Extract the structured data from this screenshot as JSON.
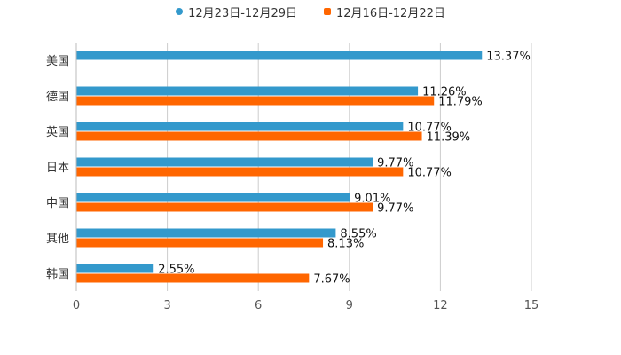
{
  "chart_data": {
    "type": "bar",
    "orientation": "horizontal",
    "title": "",
    "xlabel": "",
    "ylabel": "",
    "xlim": [
      0,
      15
    ],
    "x_ticks": [
      "0",
      "3",
      "6",
      "9",
      "12",
      "15"
    ],
    "grid": true,
    "legend_position": "top-center",
    "categories": [
      "美国",
      "德国",
      "英国",
      "日本",
      "中国",
      "其他",
      "韩国"
    ],
    "series": [
      {
        "name": "12月23日-12月29日",
        "color": "#3399cc",
        "marker": "dot",
        "values": [
          13.37,
          11.26,
          10.77,
          9.77,
          9.01,
          8.55,
          2.55
        ],
        "labels": [
          "13.37%",
          "11.26%",
          "10.77%",
          "9.77%",
          "9.01%",
          "8.55%",
          "2.55%"
        ]
      },
      {
        "name": "12月16日-12月22日",
        "color": "#ff6600",
        "marker": "square",
        "values": [
          null,
          11.79,
          11.39,
          10.77,
          9.77,
          8.13,
          7.67
        ],
        "labels": [
          "",
          "11.79%",
          "11.39%",
          "10.77%",
          "9.77%",
          "8.13%",
          "7.67%"
        ]
      }
    ]
  }
}
